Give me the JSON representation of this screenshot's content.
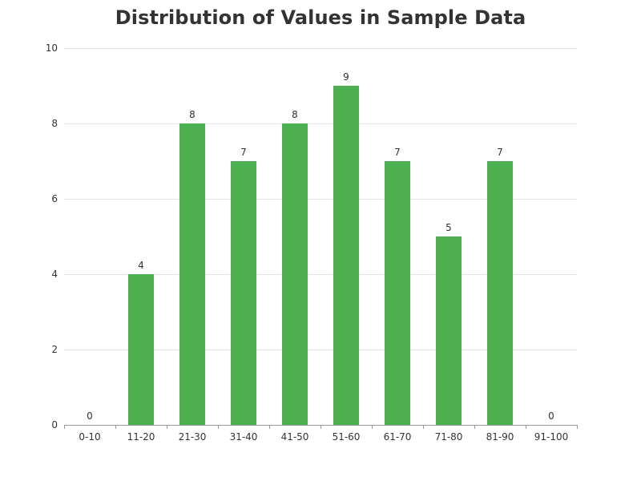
{
  "chart_data": {
    "type": "bar",
    "title": "Distribution of Values in Sample Data",
    "categories": [
      "0-10",
      "11-20",
      "21-30",
      "31-40",
      "41-50",
      "51-60",
      "61-70",
      "71-80",
      "81-90",
      "91-100"
    ],
    "values": [
      0,
      4,
      8,
      7,
      8,
      9,
      7,
      5,
      7,
      0
    ],
    "ylim": [
      0,
      10
    ],
    "yticks": [
      0,
      2,
      4,
      6,
      8,
      10
    ],
    "xlabel": "",
    "ylabel": "",
    "grid": true,
    "data_labels": true,
    "bar_color": "#4caf50",
    "gridline_color": "#e6e6e6",
    "axis_color": "#999999",
    "text_color": "#333333"
  }
}
